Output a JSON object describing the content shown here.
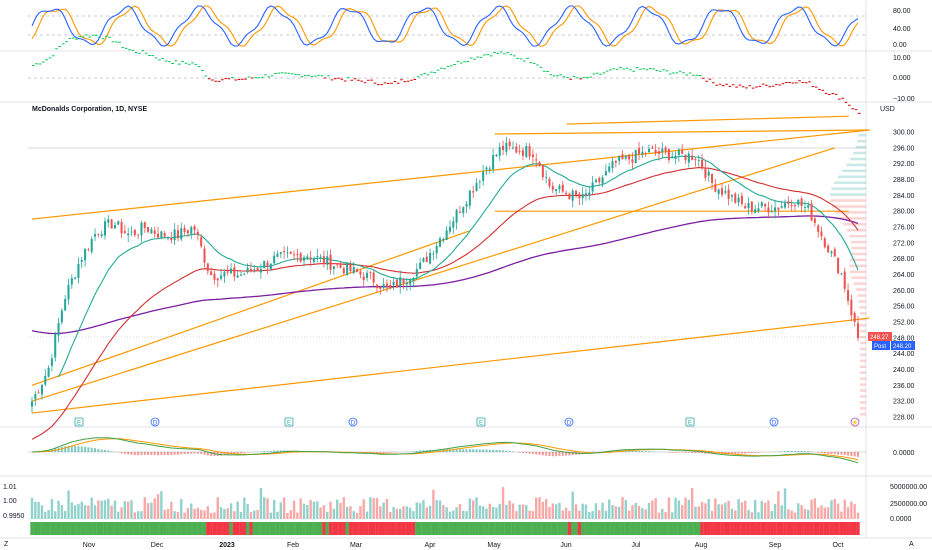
{
  "header": {
    "title": "McDonalds Corporation, 1D, NYSE",
    "currency": "USD"
  },
  "main_axis": {
    "ticks": [
      "300.00",
      "296.00",
      "292.00",
      "288.00",
      "284.00",
      "280.00",
      "276.00",
      "272.00",
      "268.00",
      "264.00",
      "260.00",
      "256.00",
      "252.00",
      "248.00",
      "244.00",
      "240.00",
      "236.00",
      "232.00",
      "228.00"
    ],
    "price_badge": "248.27",
    "post_label": "Post",
    "post_badge": "248.20"
  },
  "stoch_axis": {
    "ticks": [
      "80.00",
      "40.00",
      "0.00"
    ]
  },
  "osc_axis": {
    "ticks": [
      "10.00",
      "0.000",
      "−10.00"
    ]
  },
  "macd_axis": {
    "ticks": [
      "0.0000"
    ]
  },
  "vol_axis": {
    "ticks": [
      "5000000.00",
      "2500000.00",
      "0.0000"
    ],
    "left_ticks": [
      "1.01",
      "1.00",
      "0.9950"
    ]
  },
  "time_axis": {
    "labels": [
      "Nov",
      "Dec",
      "2023",
      "Feb",
      "Mar",
      "Apr",
      "May",
      "Jun",
      "Jul",
      "Aug",
      "Sep",
      "Oct"
    ]
  },
  "footer": {
    "left": "Z",
    "right": "A"
  },
  "events": [
    {
      "letter": "E",
      "kind": "earnings"
    },
    {
      "letter": "D",
      "kind": "dividend"
    },
    {
      "letter": "E",
      "kind": "earnings"
    },
    {
      "letter": "D",
      "kind": "dividend"
    },
    {
      "letter": "E",
      "kind": "earnings"
    },
    {
      "letter": "D",
      "kind": "dividend"
    },
    {
      "letter": "E",
      "kind": "earnings"
    },
    {
      "letter": "D",
      "kind": "dividend"
    },
    {
      "letter": "⚡",
      "kind": "split-or-news"
    }
  ],
  "colors": {
    "up": "#26a69a",
    "down": "#ef5350",
    "ema_fast": "#22ab94",
    "ema_mid": "#d32f2f",
    "ema_slow": "#7b1fa2",
    "trend": "#ff9800",
    "stoch_k": "#2962ff",
    "stoch_d": "#ff9800",
    "osc_pos": "#00c853",
    "osc_neg": "#d50000"
  },
  "chart_data": {
    "type": "line",
    "symbol": "McDonalds Corporation",
    "interval": "1D",
    "exchange": "NYSE",
    "ylim": [
      226,
      303
    ],
    "months": [
      "Nov",
      "Dec",
      "2023",
      "Feb",
      "Mar",
      "Apr",
      "May",
      "Jun",
      "Jul",
      "Aug",
      "Sep",
      "Oct"
    ],
    "price_path": [
      {
        "x": "2022-10-13",
        "y": 232
      },
      {
        "x": "2022-10-20",
        "y": 240
      },
      {
        "x": "2022-10-27",
        "y": 258
      },
      {
        "x": "2022-11-03",
        "y": 268
      },
      {
        "x": "2022-11-10",
        "y": 275
      },
      {
        "x": "2022-11-17",
        "y": 277
      },
      {
        "x": "2022-11-24",
        "y": 274
      },
      {
        "x": "2022-12-01",
        "y": 276
      },
      {
        "x": "2022-12-08",
        "y": 274
      },
      {
        "x": "2022-12-15",
        "y": 274
      },
      {
        "x": "2022-12-22",
        "y": 276
      },
      {
        "x": "2022-12-29",
        "y": 264
      },
      {
        "x": "2023-01-12",
        "y": 264
      },
      {
        "x": "2023-01-26",
        "y": 268
      },
      {
        "x": "2023-02-09",
        "y": 269
      },
      {
        "x": "2023-02-23",
        "y": 266
      },
      {
        "x": "2023-03-09",
        "y": 263
      },
      {
        "x": "2023-03-16",
        "y": 260
      },
      {
        "x": "2023-03-30",
        "y": 266
      },
      {
        "x": "2023-04-13",
        "y": 278
      },
      {
        "x": "2023-04-27",
        "y": 291
      },
      {
        "x": "2023-05-04",
        "y": 296
      },
      {
        "x": "2023-05-18",
        "y": 295
      },
      {
        "x": "2023-05-25",
        "y": 286
      },
      {
        "x": "2023-06-08",
        "y": 283
      },
      {
        "x": "2023-06-22",
        "y": 292
      },
      {
        "x": "2023-07-06",
        "y": 295
      },
      {
        "x": "2023-07-20",
        "y": 294
      },
      {
        "x": "2023-07-27",
        "y": 294
      },
      {
        "x": "2023-08-03",
        "y": 287
      },
      {
        "x": "2023-08-17",
        "y": 281
      },
      {
        "x": "2023-08-31",
        "y": 281
      },
      {
        "x": "2023-09-07",
        "y": 283
      },
      {
        "x": "2023-09-14",
        "y": 280
      },
      {
        "x": "2023-09-21",
        "y": 272
      },
      {
        "x": "2023-09-28",
        "y": 264
      },
      {
        "x": "2023-10-05",
        "y": 248
      }
    ],
    "last_price": 248.27,
    "post_market": 248.2
  }
}
